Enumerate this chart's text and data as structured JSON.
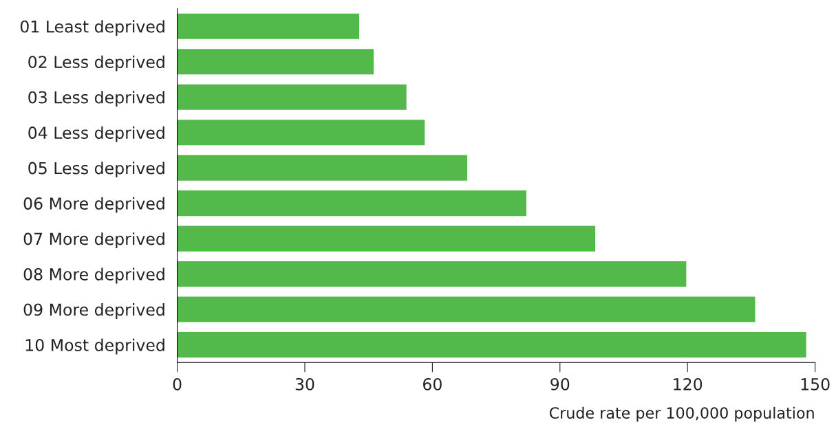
{
  "chart_data": {
    "type": "bar",
    "orientation": "horizontal",
    "categories": [
      "01 Least deprived",
      "02 Less deprived",
      "03 Less deprived",
      "04 Less deprived",
      "05 Less deprived",
      "06 More deprived",
      "07 More deprived",
      "08 More deprived",
      "09 More deprived",
      "10 Most deprived"
    ],
    "values": [
      42.8,
      46.2,
      53.9,
      58.2,
      68.2,
      82.1,
      98.3,
      119.7,
      135.9,
      147.9
    ],
    "color": "#52b94a",
    "xlim": [
      0,
      150
    ],
    "xticks": [
      0,
      30,
      60,
      90,
      120,
      150
    ],
    "xlabel": "Crude rate per 100,000 population",
    "grid": false,
    "legend": false
  }
}
